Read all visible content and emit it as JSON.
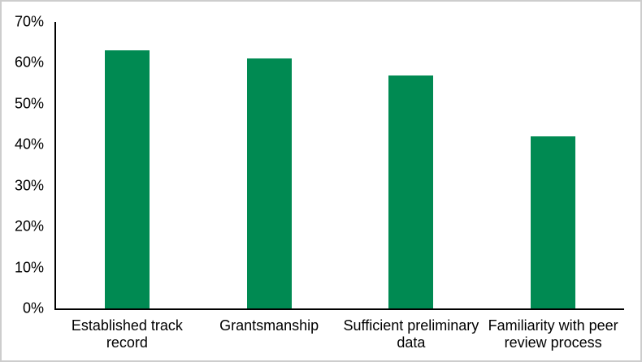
{
  "chart_data": {
    "type": "bar",
    "categories": [
      "Established track record",
      "Grantsmanship",
      "Sufficient preliminary data",
      "Familiarity with peer review process"
    ],
    "values": [
      63,
      61,
      57,
      42
    ],
    "title": "",
    "xlabel": "",
    "ylabel": "",
    "ylim": [
      0,
      70
    ],
    "ytick_step": 10,
    "ytick_labels": [
      "0%",
      "10%",
      "20%",
      "30%",
      "40%",
      "50%",
      "60%",
      "70%"
    ],
    "grid": false,
    "legend_position": "none",
    "colors": {
      "bar": "#008a52",
      "axis": "#000000",
      "background": "#ffffff",
      "frame_border": "#cdcdcd",
      "text": "#000000"
    }
  }
}
